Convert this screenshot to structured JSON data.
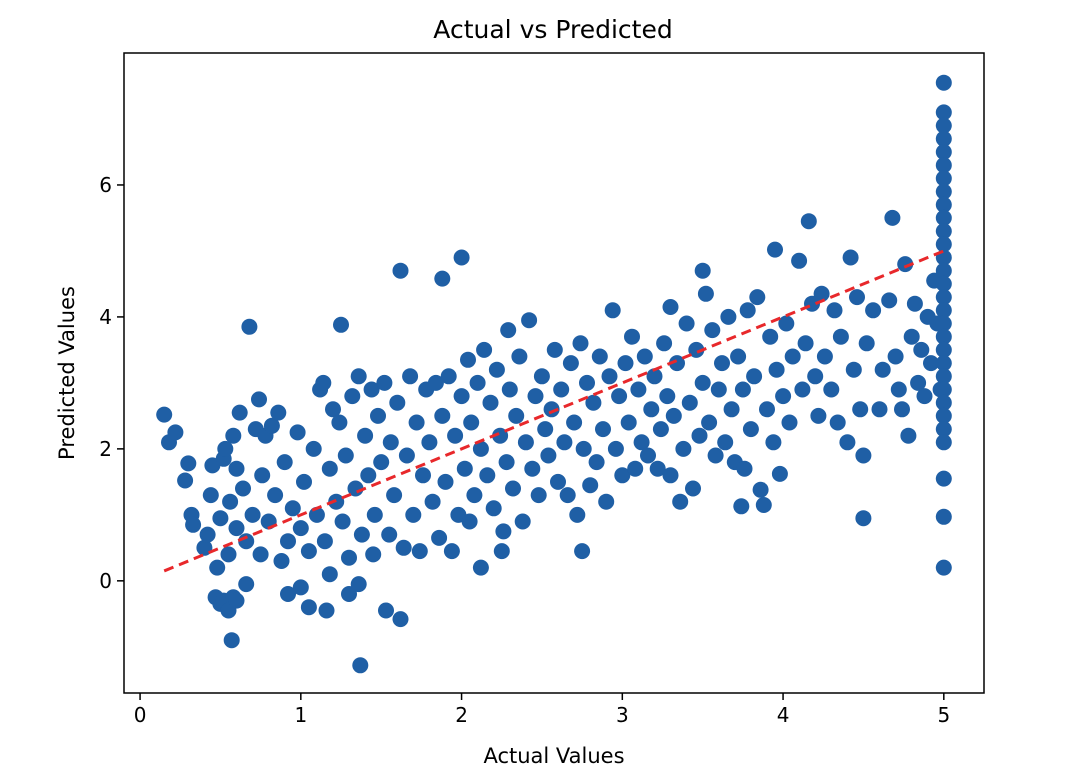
{
  "chart_data": {
    "type": "scatter",
    "title": "Actual vs Predicted",
    "xlabel": "Actual Values",
    "ylabel": "Predicted Values",
    "xlim": [
      -0.1,
      5.25
    ],
    "ylim": [
      -1.7,
      8.0
    ],
    "x_ticks": [
      0,
      1,
      2,
      3,
      4,
      5
    ],
    "y_ticks": [
      0,
      2,
      4,
      6
    ],
    "grid": false,
    "colors": {
      "points": "#1f5fa5",
      "reference_line": "#e8282b"
    },
    "reference_line": {
      "style": "dashed",
      "x": [
        0.15,
        5.0
      ],
      "y": [
        0.15,
        5.0
      ]
    },
    "series": [
      {
        "points": [
          [
            0.15,
            2.52
          ],
          [
            0.18,
            2.1
          ],
          [
            0.22,
            2.25
          ],
          [
            0.28,
            1.52
          ],
          [
            0.3,
            1.78
          ],
          [
            0.32,
            1.0
          ],
          [
            0.33,
            0.85
          ],
          [
            0.4,
            0.5
          ],
          [
            0.42,
            0.7
          ],
          [
            0.44,
            1.3
          ],
          [
            0.45,
            1.75
          ],
          [
            0.47,
            -0.25
          ],
          [
            0.48,
            0.2
          ],
          [
            0.5,
            -0.35
          ],
          [
            0.5,
            0.95
          ],
          [
            0.52,
            1.85
          ],
          [
            0.52,
            -0.3
          ],
          [
            0.53,
            2.0
          ],
          [
            0.55,
            -0.45
          ],
          [
            0.55,
            0.4
          ],
          [
            0.56,
            1.2
          ],
          [
            0.57,
            -0.9
          ],
          [
            0.58,
            2.2
          ],
          [
            0.58,
            -0.25
          ],
          [
            0.6,
            0.8
          ],
          [
            0.6,
            1.7
          ],
          [
            0.6,
            -0.3
          ],
          [
            0.62,
            2.55
          ],
          [
            0.64,
            1.4
          ],
          [
            0.66,
            0.6
          ],
          [
            0.66,
            -0.05
          ],
          [
            0.68,
            3.85
          ],
          [
            0.7,
            1.0
          ],
          [
            0.72,
            2.3
          ],
          [
            0.74,
            2.75
          ],
          [
            0.75,
            0.4
          ],
          [
            0.76,
            1.6
          ],
          [
            0.78,
            2.2
          ],
          [
            0.8,
            0.9
          ],
          [
            0.82,
            2.35
          ],
          [
            0.84,
            1.3
          ],
          [
            0.86,
            2.55
          ],
          [
            0.88,
            0.3
          ],
          [
            0.9,
            1.8
          ],
          [
            0.92,
            0.6
          ],
          [
            0.92,
            -0.2
          ],
          [
            0.95,
            1.1
          ],
          [
            0.98,
            2.25
          ],
          [
            1.0,
            0.8
          ],
          [
            1.0,
            -0.1
          ],
          [
            1.02,
            1.5
          ],
          [
            1.05,
            0.45
          ],
          [
            1.05,
            -0.4
          ],
          [
            1.08,
            2.0
          ],
          [
            1.1,
            1.0
          ],
          [
            1.12,
            2.9
          ],
          [
            1.14,
            3.0
          ],
          [
            1.15,
            0.6
          ],
          [
            1.16,
            -0.45
          ],
          [
            1.18,
            1.7
          ],
          [
            1.18,
            0.1
          ],
          [
            1.2,
            2.6
          ],
          [
            1.22,
            1.2
          ],
          [
            1.24,
            2.4
          ],
          [
            1.25,
            3.88
          ],
          [
            1.26,
            0.9
          ],
          [
            1.28,
            1.9
          ],
          [
            1.3,
            -0.2
          ],
          [
            1.3,
            0.35
          ],
          [
            1.32,
            2.8
          ],
          [
            1.34,
            1.4
          ],
          [
            1.36,
            3.1
          ],
          [
            1.36,
            -0.05
          ],
          [
            1.37,
            -1.28
          ],
          [
            1.38,
            0.7
          ],
          [
            1.4,
            2.2
          ],
          [
            1.42,
            1.6
          ],
          [
            1.44,
            2.9
          ],
          [
            1.45,
            0.4
          ],
          [
            1.46,
            1.0
          ],
          [
            1.48,
            2.5
          ],
          [
            1.5,
            1.8
          ],
          [
            1.52,
            3.0
          ],
          [
            1.53,
            -0.45
          ],
          [
            1.55,
            0.7
          ],
          [
            1.56,
            2.1
          ],
          [
            1.58,
            1.3
          ],
          [
            1.6,
            2.7
          ],
          [
            1.62,
            4.7
          ],
          [
            1.62,
            -0.58
          ],
          [
            1.64,
            0.5
          ],
          [
            1.66,
            1.9
          ],
          [
            1.68,
            3.1
          ],
          [
            1.7,
            1.0
          ],
          [
            1.72,
            2.4
          ],
          [
            1.74,
            0.45
          ],
          [
            1.76,
            1.6
          ],
          [
            1.78,
            2.9
          ],
          [
            1.8,
            2.1
          ],
          [
            1.82,
            1.2
          ],
          [
            1.84,
            3.0
          ],
          [
            1.86,
            0.65
          ],
          [
            1.88,
            4.58
          ],
          [
            1.88,
            2.5
          ],
          [
            1.9,
            1.5
          ],
          [
            1.92,
            3.1
          ],
          [
            1.94,
            0.45
          ],
          [
            1.96,
            2.2
          ],
          [
            1.98,
            1.0
          ],
          [
            2.0,
            4.9
          ],
          [
            2.0,
            2.8
          ],
          [
            2.02,
            1.7
          ],
          [
            2.04,
            3.35
          ],
          [
            2.05,
            0.9
          ],
          [
            2.06,
            2.4
          ],
          [
            2.08,
            1.3
          ],
          [
            2.1,
            3.0
          ],
          [
            2.12,
            0.2
          ],
          [
            2.12,
            2.0
          ],
          [
            2.14,
            3.5
          ],
          [
            2.16,
            1.6
          ],
          [
            2.18,
            2.7
          ],
          [
            2.2,
            1.1
          ],
          [
            2.22,
            3.2
          ],
          [
            2.24,
            2.2
          ],
          [
            2.25,
            0.45
          ],
          [
            2.26,
            0.75
          ],
          [
            2.28,
            1.8
          ],
          [
            2.29,
            3.8
          ],
          [
            2.3,
            2.9
          ],
          [
            2.32,
            1.4
          ],
          [
            2.34,
            2.5
          ],
          [
            2.36,
            3.4
          ],
          [
            2.38,
            0.9
          ],
          [
            2.4,
            2.1
          ],
          [
            2.42,
            3.95
          ],
          [
            2.44,
            1.7
          ],
          [
            2.46,
            2.8
          ],
          [
            2.48,
            1.3
          ],
          [
            2.5,
            3.1
          ],
          [
            2.52,
            2.3
          ],
          [
            2.54,
            1.9
          ],
          [
            2.56,
            2.6
          ],
          [
            2.58,
            3.5
          ],
          [
            2.6,
            1.5
          ],
          [
            2.62,
            2.9
          ],
          [
            2.64,
            2.1
          ],
          [
            2.66,
            1.3
          ],
          [
            2.68,
            3.3
          ],
          [
            2.7,
            2.4
          ],
          [
            2.72,
            1.0
          ],
          [
            2.74,
            3.6
          ],
          [
            2.75,
            0.45
          ],
          [
            2.76,
            2.0
          ],
          [
            2.78,
            3.0
          ],
          [
            2.8,
            1.45
          ],
          [
            2.82,
            2.7
          ],
          [
            2.84,
            1.8
          ],
          [
            2.86,
            3.4
          ],
          [
            2.88,
            2.3
          ],
          [
            2.9,
            1.2
          ],
          [
            2.92,
            3.1
          ],
          [
            2.94,
            4.1
          ],
          [
            2.96,
            2.0
          ],
          [
            2.98,
            2.8
          ],
          [
            3.0,
            1.6
          ],
          [
            3.02,
            3.3
          ],
          [
            3.04,
            2.4
          ],
          [
            3.06,
            3.7
          ],
          [
            3.08,
            1.7
          ],
          [
            3.1,
            2.9
          ],
          [
            3.12,
            2.1
          ],
          [
            3.14,
            3.4
          ],
          [
            3.16,
            1.9
          ],
          [
            3.18,
            2.6
          ],
          [
            3.2,
            3.1
          ],
          [
            3.22,
            1.7
          ],
          [
            3.24,
            2.3
          ],
          [
            3.26,
            3.6
          ],
          [
            3.28,
            2.8
          ],
          [
            3.3,
            4.15
          ],
          [
            3.3,
            1.6
          ],
          [
            3.32,
            2.5
          ],
          [
            3.34,
            3.3
          ],
          [
            3.36,
            1.2
          ],
          [
            3.38,
            2.0
          ],
          [
            3.4,
            3.9
          ],
          [
            3.42,
            2.7
          ],
          [
            3.44,
            1.4
          ],
          [
            3.46,
            3.5
          ],
          [
            3.48,
            2.2
          ],
          [
            3.5,
            4.7
          ],
          [
            3.5,
            3.0
          ],
          [
            3.52,
            4.35
          ],
          [
            3.54,
            2.4
          ],
          [
            3.56,
            3.8
          ],
          [
            3.58,
            1.9
          ],
          [
            3.6,
            2.9
          ],
          [
            3.62,
            3.3
          ],
          [
            3.64,
            2.1
          ],
          [
            3.66,
            4.0
          ],
          [
            3.68,
            2.6
          ],
          [
            3.7,
            1.8
          ],
          [
            3.72,
            3.4
          ],
          [
            3.74,
            1.13
          ],
          [
            3.75,
            2.9
          ],
          [
            3.76,
            1.7
          ],
          [
            3.78,
            4.1
          ],
          [
            3.8,
            2.3
          ],
          [
            3.82,
            3.1
          ],
          [
            3.84,
            4.3
          ],
          [
            3.86,
            1.38
          ],
          [
            3.88,
            1.15
          ],
          [
            3.9,
            2.6
          ],
          [
            3.92,
            3.7
          ],
          [
            3.94,
            2.1
          ],
          [
            3.95,
            5.02
          ],
          [
            3.96,
            3.2
          ],
          [
            3.98,
            1.62
          ],
          [
            4.0,
            2.8
          ],
          [
            4.02,
            3.9
          ],
          [
            4.04,
            2.4
          ],
          [
            4.06,
            3.4
          ],
          [
            4.1,
            4.85
          ],
          [
            4.12,
            2.9
          ],
          [
            4.14,
            3.6
          ],
          [
            4.16,
            5.45
          ],
          [
            4.18,
            4.2
          ],
          [
            4.2,
            3.1
          ],
          [
            4.22,
            2.5
          ],
          [
            4.24,
            4.35
          ],
          [
            4.26,
            3.4
          ],
          [
            4.3,
            2.9
          ],
          [
            4.32,
            4.1
          ],
          [
            4.34,
            2.4
          ],
          [
            4.36,
            3.7
          ],
          [
            4.4,
            2.1
          ],
          [
            4.42,
            4.9
          ],
          [
            4.44,
            3.2
          ],
          [
            4.46,
            4.3
          ],
          [
            4.48,
            2.6
          ],
          [
            4.5,
            1.9
          ],
          [
            4.5,
            0.95
          ],
          [
            4.52,
            3.6
          ],
          [
            4.56,
            4.1
          ],
          [
            4.6,
            2.6
          ],
          [
            4.62,
            3.2
          ],
          [
            4.66,
            4.25
          ],
          [
            4.68,
            5.5
          ],
          [
            4.7,
            3.4
          ],
          [
            4.72,
            2.9
          ],
          [
            4.74,
            2.6
          ],
          [
            4.76,
            4.8
          ],
          [
            4.78,
            2.2
          ],
          [
            4.8,
            3.7
          ],
          [
            4.82,
            4.2
          ],
          [
            4.84,
            3.0
          ],
          [
            4.86,
            3.5
          ],
          [
            4.88,
            2.8
          ],
          [
            4.9,
            4.0
          ],
          [
            4.92,
            3.3
          ],
          [
            4.94,
            4.55
          ],
          [
            4.96,
            3.9
          ],
          [
            4.98,
            2.9
          ],
          [
            5.0,
            7.55
          ],
          [
            5.0,
            7.1
          ],
          [
            5.0,
            6.9
          ],
          [
            5.0,
            6.7
          ],
          [
            5.0,
            6.5
          ],
          [
            5.0,
            6.3
          ],
          [
            5.0,
            6.1
          ],
          [
            5.0,
            5.9
          ],
          [
            5.0,
            5.7
          ],
          [
            5.0,
            5.5
          ],
          [
            5.0,
            5.3
          ],
          [
            5.0,
            5.1
          ],
          [
            5.0,
            4.9
          ],
          [
            5.0,
            4.7
          ],
          [
            5.0,
            4.5
          ],
          [
            5.0,
            4.3
          ],
          [
            5.0,
            4.1
          ],
          [
            5.0,
            3.9
          ],
          [
            5.0,
            3.7
          ],
          [
            5.0,
            3.5
          ],
          [
            5.0,
            3.3
          ],
          [
            5.0,
            3.1
          ],
          [
            5.0,
            2.9
          ],
          [
            5.0,
            2.7
          ],
          [
            5.0,
            2.5
          ],
          [
            5.0,
            2.3
          ],
          [
            5.0,
            2.1
          ],
          [
            5.0,
            1.55
          ],
          [
            5.0,
            0.97
          ],
          [
            5.0,
            0.2
          ]
        ]
      }
    ]
  }
}
